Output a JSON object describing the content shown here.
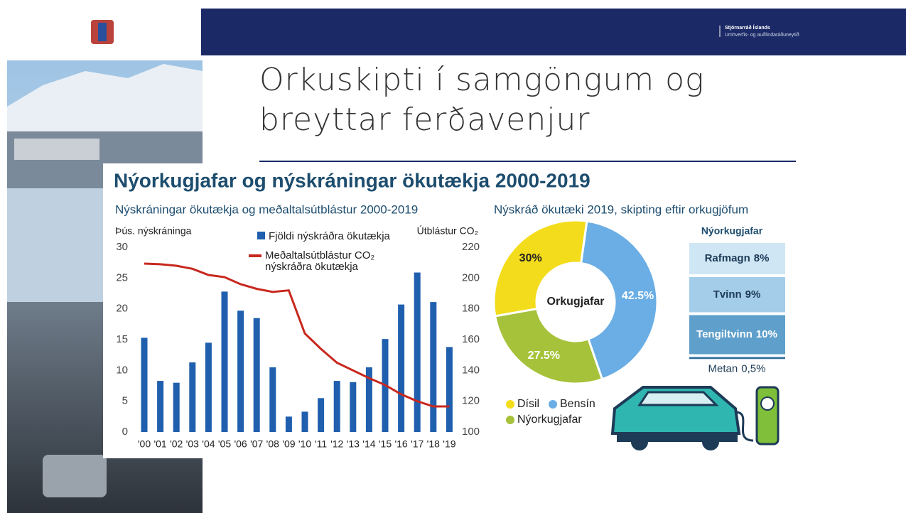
{
  "header": {
    "ministry": "Stjórnarráð Íslands",
    "department": "Umhverfis- og auðlindaráðuneytið"
  },
  "slide_title": "Orkuskipti í samgöngum og breyttar ferðavenjur",
  "infographic_title": "Nýorkugjafar og nýskráningar ökutækja 2000-2019",
  "chart_data": [
    {
      "type": "bar",
      "title": "Nýskráningar ökutækja og meðaltalsútblástur 2000-2019",
      "ylabel": "Þús. nýskráninga",
      "y2label": "Útblástur CO₂",
      "categories": [
        "'00",
        "'01",
        "'02",
        "'03",
        "'04",
        "'05",
        "'06",
        "'07",
        "'08",
        "'09",
        "'10",
        "'11",
        "'12",
        "'13",
        "'14",
        "'15",
        "'16",
        "'17",
        "'18",
        "'19"
      ],
      "series": [
        {
          "name": "Fjöldi nýskráðra ökutækja",
          "color": "#1f5fae",
          "type": "bar",
          "values": [
            15.3,
            8.3,
            8,
            11.3,
            14.5,
            22.8,
            19.7,
            18.5,
            10.5,
            2.5,
            3.3,
            5.5,
            8.3,
            8.1,
            10.5,
            15.1,
            20.7,
            25.9,
            21.1,
            13.8
          ]
        },
        {
          "name": "Meðaltalsútblástur CO₂ nýskráðra ökutækja",
          "color": "#c8281e",
          "type": "line",
          "axis": "y2",
          "values": [
            209.4,
            209,
            208,
            206,
            202,
            200.6,
            196,
            193,
            191,
            192,
            164,
            154,
            145,
            140,
            135,
            130.5,
            124.5,
            120,
            116.6,
            116.6
          ]
        }
      ],
      "ylim": [
        0,
        30
      ],
      "yticks": [
        0,
        5,
        10,
        15,
        20,
        25,
        30
      ],
      "y2lim": [
        100,
        220
      ],
      "y2ticks": [
        100,
        120,
        140,
        160,
        180,
        200,
        220
      ]
    },
    {
      "type": "pie",
      "title": "Nýskráð ökutæki 2019, skipting eftir orkugjöfum",
      "center_label": "Orkugjafar",
      "categories": [
        "Dísil",
        "Bensín",
        "Nýorkugjafar"
      ],
      "values": [
        30,
        42.5,
        27.5
      ],
      "value_labels": [
        "30%",
        "42.5%",
        "27.5%"
      ],
      "colors": [
        "#f3dc1c",
        "#6aaee5",
        "#a6c23a"
      ],
      "breakdown": {
        "title": "Nýorkugjafar",
        "categories": [
          "Rafmagn",
          "Tvinn",
          "Tengiltvinn",
          "Metan"
        ],
        "values": [
          8,
          9,
          10,
          0.5
        ],
        "value_labels": [
          "8%",
          "9%",
          "10%",
          "0,5%"
        ],
        "colors": [
          "#cfe6f5",
          "#a3cde9",
          "#5e9fcb",
          "#2f6f9f"
        ]
      }
    }
  ]
}
